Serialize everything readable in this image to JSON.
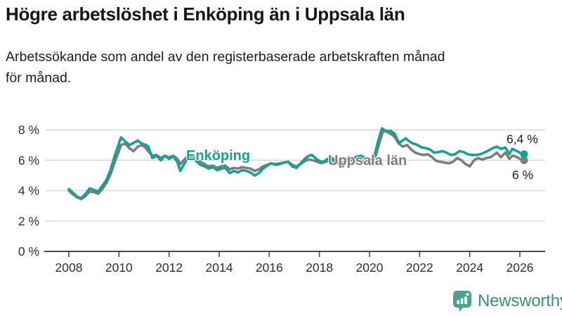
{
  "title": "Högre arbetslöshet i Enköping än i Uppsala län",
  "subtitle_lines": [
    "Arbetssökande som andel av den registerbaserade arbetskraften månad",
    "för månad."
  ],
  "branding": {
    "name": "Newsworthy",
    "icon": "newsworthy-bubble-bar-chart-icon"
  },
  "colors": {
    "enkoping": "#18a192",
    "uppsala": "#7d7d7d",
    "gridline": "#d9d9d9",
    "axis": "#4a4a4a",
    "axis_text": "#303030",
    "title_text": "#161616",
    "end_label_text": "#1d1d1d",
    "logo_icon": "#4da092",
    "logo_text": "#3e8d85",
    "background": "#ffffff"
  },
  "chart_data": {
    "type": "line",
    "title": "",
    "xlabel": "",
    "ylabel": "",
    "grid": "horizontal",
    "legend_position": "inline-labels",
    "xlim": [
      2007.1,
      2026.5
    ],
    "ylim": [
      0,
      8.8
    ],
    "x_ticks": [
      2008,
      2010,
      2012,
      2014,
      2016,
      2018,
      2020,
      2022,
      2024,
      2026
    ],
    "x_tick_labels": [
      "2008",
      "2010",
      "2012",
      "2014",
      "2016",
      "2018",
      "2020",
      "2022",
      "2024",
      "2026"
    ],
    "y_ticks": [
      0,
      2,
      4,
      6,
      8
    ],
    "y_tick_labels": [
      "0 %",
      "2 %",
      "4 %",
      "6 %",
      "8 %"
    ],
    "series": [
      {
        "name": "Enköping",
        "color": "#18a192",
        "end_label": "6,4 %",
        "end_value": 6.4,
        "points": [
          [
            2008.0,
            4.1
          ],
          [
            2008.17,
            3.85
          ],
          [
            2008.33,
            3.6
          ],
          [
            2008.5,
            3.5
          ],
          [
            2008.67,
            3.8
          ],
          [
            2008.83,
            4.15
          ],
          [
            2009.0,
            4.05
          ],
          [
            2009.17,
            3.95
          ],
          [
            2009.33,
            4.3
          ],
          [
            2009.5,
            4.7
          ],
          [
            2009.67,
            5.4
          ],
          [
            2009.83,
            6.3
          ],
          [
            2010.0,
            7.1
          ],
          [
            2010.08,
            7.5
          ],
          [
            2010.25,
            7.25
          ],
          [
            2010.42,
            7.0
          ],
          [
            2010.58,
            7.15
          ],
          [
            2010.75,
            7.3
          ],
          [
            2010.92,
            7.1
          ],
          [
            2011.08,
            7.0
          ],
          [
            2011.17,
            6.9
          ],
          [
            2011.33,
            6.15
          ],
          [
            2011.5,
            6.3
          ],
          [
            2011.67,
            6.0
          ],
          [
            2011.83,
            6.3
          ],
          [
            2012.0,
            6.1
          ],
          [
            2012.17,
            6.25
          ],
          [
            2012.33,
            5.9
          ],
          [
            2012.45,
            5.3
          ],
          [
            2012.58,
            5.7
          ],
          [
            2012.75,
            6.15
          ],
          [
            2012.92,
            6.2
          ],
          [
            2013.08,
            5.95
          ],
          [
            2013.25,
            5.7
          ],
          [
            2013.42,
            5.6
          ],
          [
            2013.58,
            5.45
          ],
          [
            2013.75,
            5.55
          ],
          [
            2013.92,
            5.35
          ],
          [
            2014.08,
            5.45
          ],
          [
            2014.25,
            5.5
          ],
          [
            2014.42,
            5.15
          ],
          [
            2014.58,
            5.3
          ],
          [
            2014.75,
            5.2
          ],
          [
            2014.92,
            5.35
          ],
          [
            2015.08,
            5.3
          ],
          [
            2015.25,
            5.2
          ],
          [
            2015.42,
            5.0
          ],
          [
            2015.58,
            5.15
          ],
          [
            2015.75,
            5.45
          ],
          [
            2015.92,
            5.65
          ],
          [
            2016.08,
            5.8
          ],
          [
            2016.25,
            5.7
          ],
          [
            2016.42,
            5.75
          ],
          [
            2016.58,
            5.85
          ],
          [
            2016.75,
            5.9
          ],
          [
            2016.92,
            5.6
          ],
          [
            2017.08,
            5.5
          ],
          [
            2017.25,
            5.8
          ],
          [
            2017.42,
            6.1
          ],
          [
            2017.58,
            6.3
          ],
          [
            2017.7,
            6.35
          ],
          [
            2017.83,
            6.15
          ],
          [
            2018.0,
            5.95
          ],
          [
            2018.17,
            5.9
          ],
          [
            2018.33,
            6.1
          ],
          [
            2018.5,
            6.15
          ],
          [
            2018.67,
            5.95
          ],
          [
            2018.83,
            5.7
          ],
          [
            2019.0,
            5.9
          ],
          [
            2019.17,
            6.2
          ],
          [
            2019.33,
            6.1
          ],
          [
            2019.5,
            6.25
          ],
          [
            2019.67,
            6.3
          ],
          [
            2019.83,
            6.15
          ],
          [
            2020.0,
            6.0
          ],
          [
            2020.17,
            6.1
          ],
          [
            2020.33,
            7.2
          ],
          [
            2020.5,
            8.1
          ],
          [
            2020.58,
            8.0
          ],
          [
            2020.75,
            7.9
          ],
          [
            2020.83,
            7.95
          ],
          [
            2021.0,
            7.75
          ],
          [
            2021.17,
            7.15
          ],
          [
            2021.33,
            7.3
          ],
          [
            2021.45,
            7.45
          ],
          [
            2021.58,
            7.25
          ],
          [
            2021.75,
            7.1
          ],
          [
            2021.92,
            7.0
          ],
          [
            2022.08,
            6.85
          ],
          [
            2022.25,
            6.8
          ],
          [
            2022.42,
            6.7
          ],
          [
            2022.58,
            6.5
          ],
          [
            2022.75,
            6.55
          ],
          [
            2022.92,
            6.6
          ],
          [
            2023.08,
            6.5
          ],
          [
            2023.25,
            6.35
          ],
          [
            2023.42,
            6.4
          ],
          [
            2023.58,
            6.6
          ],
          [
            2023.75,
            6.55
          ],
          [
            2023.92,
            6.4
          ],
          [
            2024.08,
            6.35
          ],
          [
            2024.25,
            6.35
          ],
          [
            2024.42,
            6.4
          ],
          [
            2024.58,
            6.5
          ],
          [
            2024.75,
            6.65
          ],
          [
            2024.92,
            6.8
          ],
          [
            2025.08,
            6.9
          ],
          [
            2025.25,
            6.75
          ],
          [
            2025.42,
            6.85
          ],
          [
            2025.58,
            6.4
          ],
          [
            2025.7,
            6.75
          ],
          [
            2025.83,
            6.65
          ],
          [
            2026.0,
            6.5
          ],
          [
            2026.17,
            6.4
          ]
        ]
      },
      {
        "name": "Uppsala län",
        "color": "#7d7d7d",
        "end_label": "6 %",
        "end_value": 6.0,
        "points": [
          [
            2008.0,
            4.0
          ],
          [
            2008.17,
            3.75
          ],
          [
            2008.33,
            3.55
          ],
          [
            2008.5,
            3.45
          ],
          [
            2008.67,
            3.65
          ],
          [
            2008.83,
            3.95
          ],
          [
            2009.0,
            3.9
          ],
          [
            2009.17,
            3.8
          ],
          [
            2009.33,
            4.1
          ],
          [
            2009.5,
            4.5
          ],
          [
            2009.67,
            5.1
          ],
          [
            2009.83,
            5.9
          ],
          [
            2010.0,
            6.6
          ],
          [
            2010.08,
            7.0
          ],
          [
            2010.25,
            7.1
          ],
          [
            2010.42,
            6.8
          ],
          [
            2010.58,
            6.6
          ],
          [
            2010.75,
            6.9
          ],
          [
            2010.92,
            7.0
          ],
          [
            2011.08,
            6.8
          ],
          [
            2011.17,
            6.6
          ],
          [
            2011.33,
            6.3
          ],
          [
            2011.5,
            6.35
          ],
          [
            2011.67,
            6.15
          ],
          [
            2011.83,
            6.3
          ],
          [
            2012.0,
            6.2
          ],
          [
            2012.17,
            6.3
          ],
          [
            2012.33,
            6.1
          ],
          [
            2012.45,
            5.75
          ],
          [
            2012.58,
            6.0
          ],
          [
            2012.75,
            6.3
          ],
          [
            2012.92,
            6.25
          ],
          [
            2013.08,
            6.05
          ],
          [
            2013.25,
            5.9
          ],
          [
            2013.42,
            5.75
          ],
          [
            2013.58,
            5.6
          ],
          [
            2013.75,
            5.65
          ],
          [
            2013.92,
            5.5
          ],
          [
            2014.08,
            5.6
          ],
          [
            2014.25,
            5.65
          ],
          [
            2014.42,
            5.4
          ],
          [
            2014.58,
            5.5
          ],
          [
            2014.75,
            5.45
          ],
          [
            2014.92,
            5.55
          ],
          [
            2015.08,
            5.5
          ],
          [
            2015.25,
            5.45
          ],
          [
            2015.42,
            5.3
          ],
          [
            2015.58,
            5.4
          ],
          [
            2015.75,
            5.6
          ],
          [
            2015.92,
            5.7
          ],
          [
            2016.08,
            5.8
          ],
          [
            2016.25,
            5.75
          ],
          [
            2016.42,
            5.8
          ],
          [
            2016.58,
            5.85
          ],
          [
            2016.75,
            5.9
          ],
          [
            2016.92,
            5.7
          ],
          [
            2017.08,
            5.6
          ],
          [
            2017.25,
            5.75
          ],
          [
            2017.42,
            5.95
          ],
          [
            2017.58,
            6.05
          ],
          [
            2017.75,
            6.0
          ],
          [
            2017.92,
            5.9
          ],
          [
            2018.08,
            5.8
          ],
          [
            2018.25,
            5.9
          ],
          [
            2018.42,
            6.0
          ],
          [
            2018.58,
            5.95
          ],
          [
            2018.75,
            5.8
          ],
          [
            2018.92,
            5.6
          ],
          [
            2019.08,
            5.9
          ],
          [
            2019.25,
            6.0
          ],
          [
            2019.42,
            5.95
          ],
          [
            2019.58,
            6.05
          ],
          [
            2019.75,
            6.0
          ],
          [
            2019.92,
            5.9
          ],
          [
            2020.08,
            5.8
          ],
          [
            2020.25,
            6.3
          ],
          [
            2020.42,
            7.3
          ],
          [
            2020.55,
            7.95
          ],
          [
            2020.67,
            7.9
          ],
          [
            2020.83,
            7.75
          ],
          [
            2021.0,
            7.55
          ],
          [
            2021.17,
            7.1
          ],
          [
            2021.33,
            6.9
          ],
          [
            2021.5,
            7.0
          ],
          [
            2021.67,
            6.7
          ],
          [
            2021.83,
            6.5
          ],
          [
            2022.0,
            6.4
          ],
          [
            2022.17,
            6.35
          ],
          [
            2022.33,
            6.4
          ],
          [
            2022.5,
            6.2
          ],
          [
            2022.67,
            5.95
          ],
          [
            2022.83,
            5.9
          ],
          [
            2023.0,
            5.85
          ],
          [
            2023.17,
            5.8
          ],
          [
            2023.33,
            5.9
          ],
          [
            2023.5,
            6.15
          ],
          [
            2023.67,
            6.0
          ],
          [
            2023.83,
            5.75
          ],
          [
            2024.0,
            5.6
          ],
          [
            2024.17,
            6.0
          ],
          [
            2024.33,
            6.15
          ],
          [
            2024.5,
            6.05
          ],
          [
            2024.67,
            6.15
          ],
          [
            2024.83,
            6.2
          ],
          [
            2025.08,
            6.5
          ],
          [
            2025.25,
            6.2
          ],
          [
            2025.42,
            6.5
          ],
          [
            2025.58,
            6.1
          ],
          [
            2025.7,
            6.3
          ],
          [
            2025.83,
            6.25
          ],
          [
            2026.0,
            6.1
          ],
          [
            2026.17,
            6.0
          ]
        ]
      }
    ]
  }
}
